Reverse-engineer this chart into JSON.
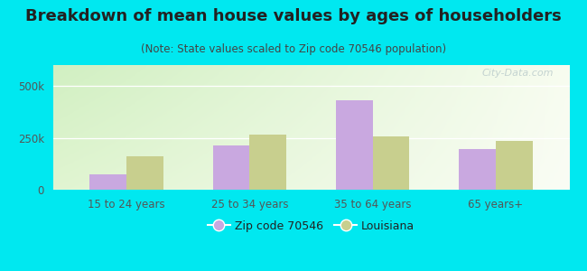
{
  "title": "Breakdown of mean house values by ages of householders",
  "subtitle": "(Note: State values scaled to Zip code 70546 population)",
  "categories": [
    "15 to 24 years",
    "25 to 34 years",
    "35 to 64 years",
    "65 years+"
  ],
  "zip_values": [
    75000,
    215000,
    430000,
    195000
  ],
  "state_values": [
    160000,
    265000,
    255000,
    235000
  ],
  "zip_color": "#c9a8e0",
  "state_color": "#c8cf8e",
  "background_outer": "#00e8f0",
  "ytick_labels": [
    "0",
    "250k",
    "500k"
  ],
  "ylim": [
    0,
    600000
  ],
  "legend_zip_label": "Zip code 70546",
  "legend_state_label": "Louisiana",
  "title_fontsize": 13,
  "subtitle_fontsize": 8.5,
  "tick_fontsize": 8.5,
  "legend_fontsize": 9,
  "title_color": "#222222",
  "subtitle_color": "#444444",
  "tick_color": "#555555",
  "watermark": "City-Data.com",
  "watermark_color": "#bbcccc",
  "grid_color": "#ffffff",
  "bar_width": 0.3
}
